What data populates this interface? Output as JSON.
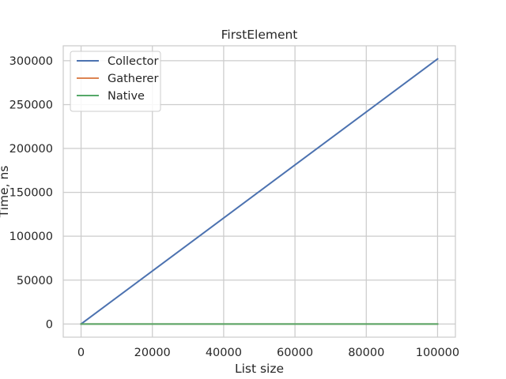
{
  "chart_data": {
    "type": "line",
    "title": "FirstElement",
    "xlabel": "List size",
    "ylabel": "Time, ns",
    "xlim": [
      -5000,
      105000
    ],
    "ylim": [
      -15000,
      317000
    ],
    "xticks": [
      0,
      20000,
      40000,
      60000,
      80000,
      100000
    ],
    "xtick_labels": [
      "0",
      "20000",
      "40000",
      "60000",
      "80000",
      "100000"
    ],
    "yticks": [
      0,
      50000,
      100000,
      150000,
      200000,
      250000,
      300000
    ],
    "ytick_labels": [
      "0",
      "50000",
      "100000",
      "150000",
      "200000",
      "250000",
      "300000"
    ],
    "grid": true,
    "legend_position": "top-left",
    "series": [
      {
        "name": "Collector",
        "color": "#4c72b0",
        "x": [
          0,
          100000
        ],
        "y": [
          0,
          302000
        ]
      },
      {
        "name": "Gatherer",
        "color": "#dd8452",
        "x": [
          0,
          100000
        ],
        "y": [
          0,
          0
        ]
      },
      {
        "name": "Native",
        "color": "#55a868",
        "x": [
          0,
          100000
        ],
        "y": [
          0,
          0
        ]
      }
    ]
  }
}
